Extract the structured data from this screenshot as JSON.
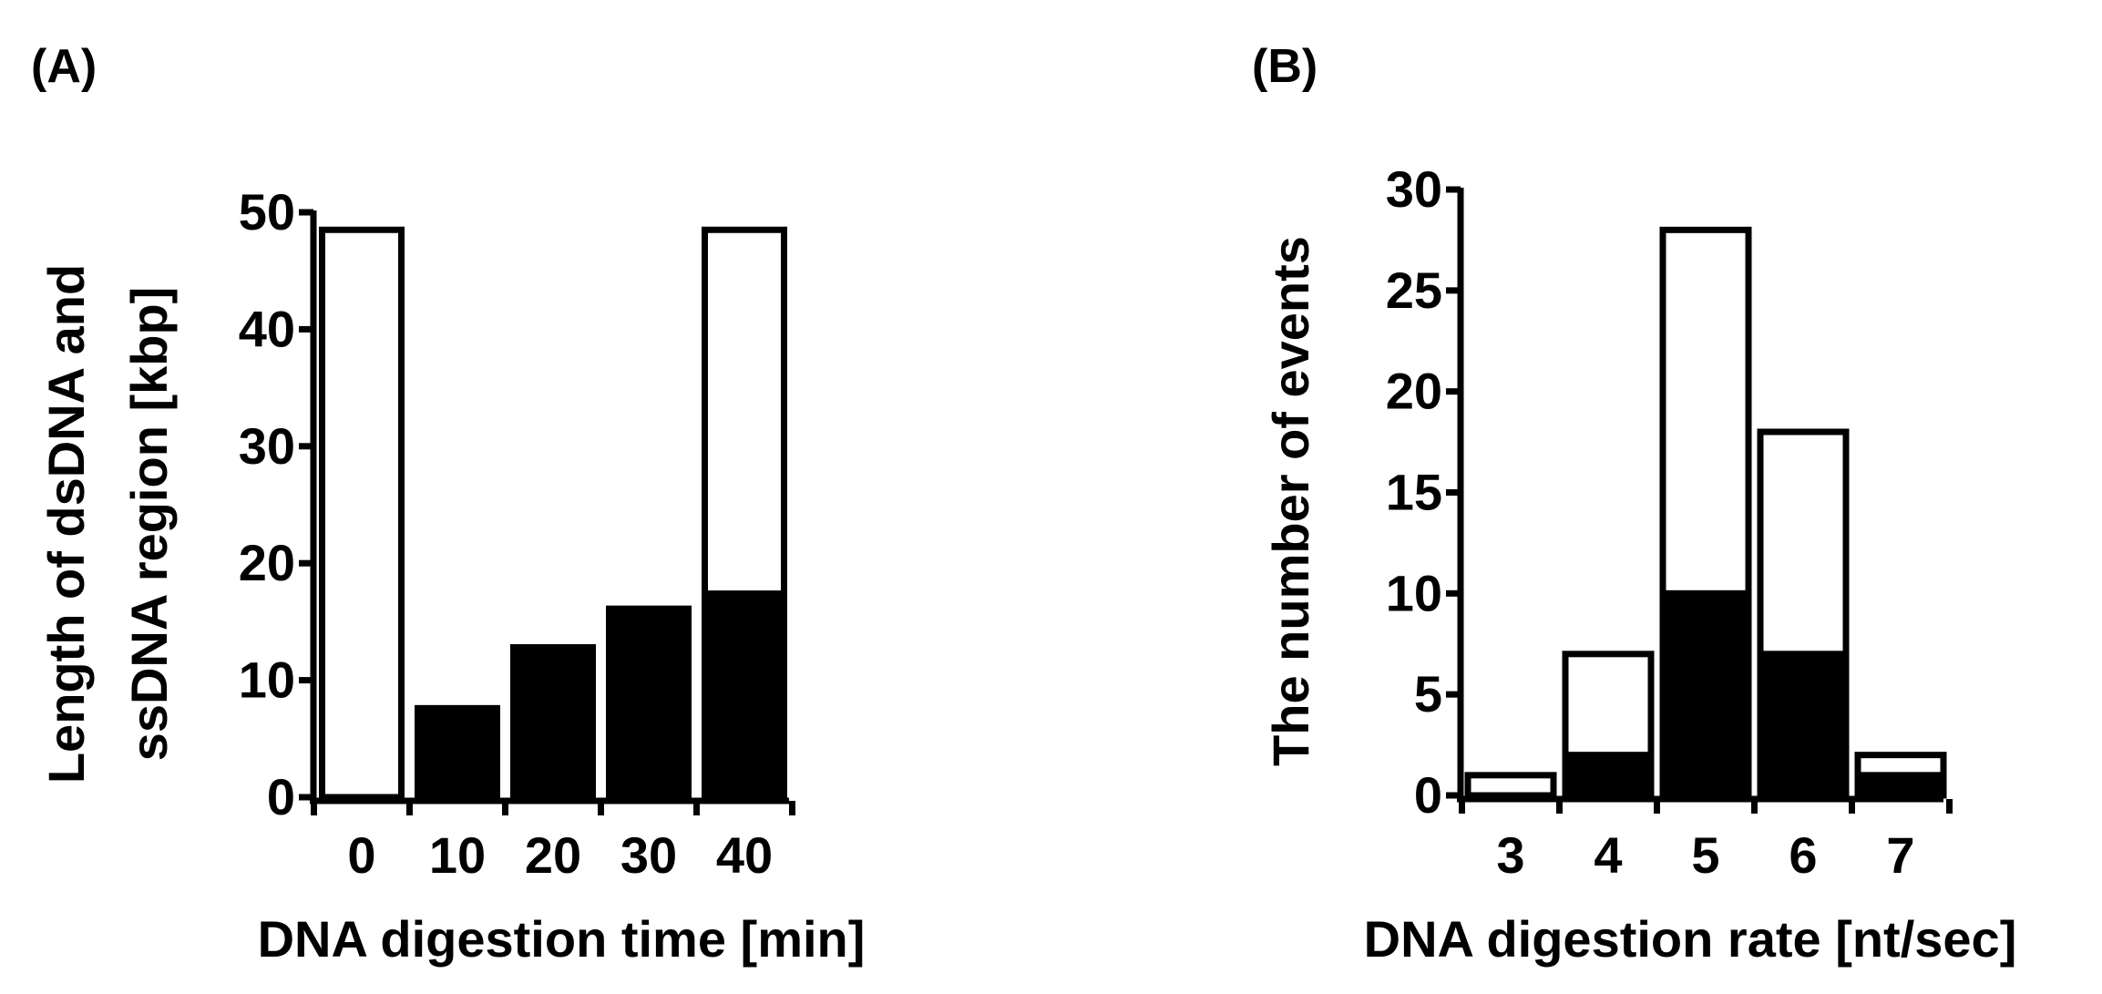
{
  "chart_data": [
    {
      "panel_label": "(A)",
      "type": "bar",
      "stacked": true,
      "categories": [
        "0",
        "10",
        "20",
        "30",
        "40"
      ],
      "series": [
        {
          "color": "#000000",
          "values": [
            0,
            7.6,
            12.8,
            16.1,
            17.4
          ]
        },
        {
          "color": "#ffffff",
          "values": [
            48.5,
            0,
            0,
            0,
            31.1
          ]
        }
      ],
      "xlabel": "DNA digestion time [min]",
      "ylabel": "Length of dsDNA and ssDNA region [kbp]",
      "ylim": [
        0,
        50
      ],
      "yticks": [
        0,
        10,
        20,
        30,
        40,
        50
      ],
      "grid": false,
      "legend": "none"
    },
    {
      "panel_label": "(B)",
      "type": "bar",
      "stacked": true,
      "categories": [
        "3",
        "4",
        "5",
        "6",
        "7"
      ],
      "series": [
        {
          "color": "#000000",
          "values": [
            0,
            2,
            10,
            7,
            1
          ]
        },
        {
          "color": "#ffffff",
          "values": [
            1,
            5,
            18,
            11,
            1
          ]
        }
      ],
      "xlabel": "DNA digestion rate [nt/sec]",
      "ylabel": "The number of events",
      "ylim": [
        0,
        30
      ],
      "yticks": [
        0,
        5,
        10,
        15,
        20,
        25,
        30
      ],
      "grid": false,
      "legend": "none"
    }
  ]
}
